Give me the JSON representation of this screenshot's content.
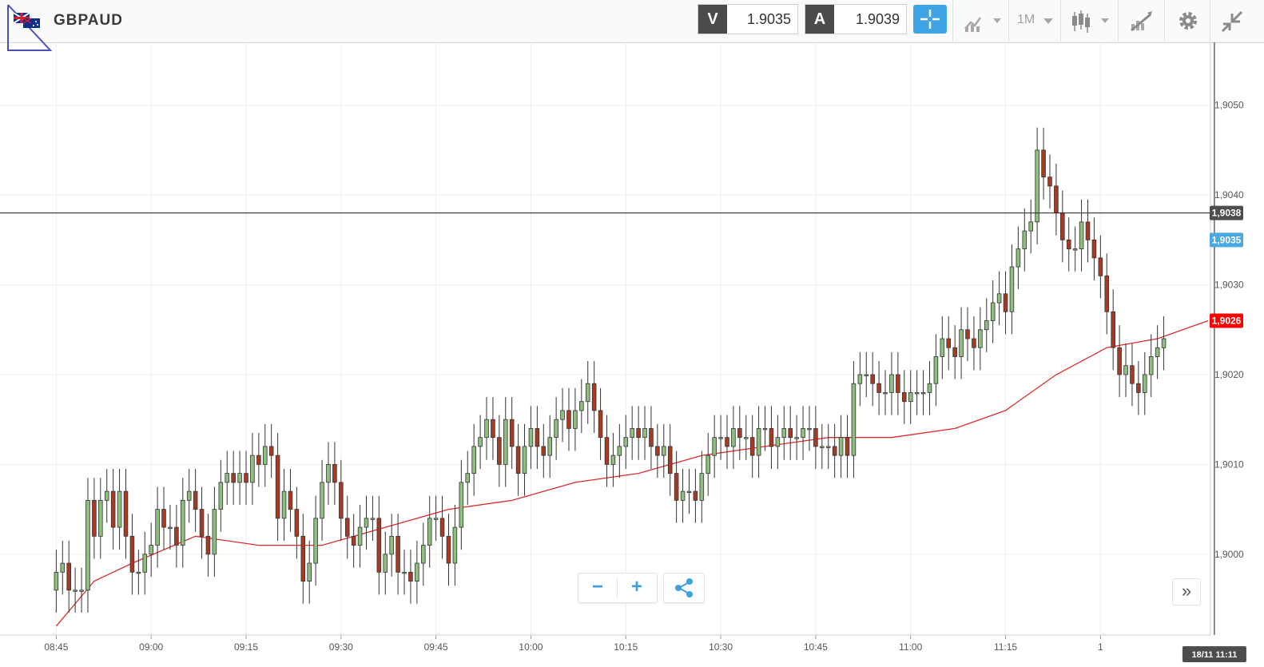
{
  "header": {
    "symbol": "GBPAUD",
    "sell": {
      "label": "V",
      "price": "1.9035"
    },
    "buy": {
      "label": "A",
      "price": "1.9039"
    },
    "timeframe": "1M",
    "icons": [
      "crosshair-icon",
      "chart-type-icon",
      "candles-icon",
      "drawing-icon",
      "gear-icon",
      "collapse-icon"
    ]
  },
  "controls": {
    "zoom_out": "−",
    "zoom_in": "+",
    "share": "share-icon",
    "scroll_forward": "»"
  },
  "colors": {
    "up": "#8fbf7e",
    "down": "#a83a24",
    "ma": "#e02b2b",
    "bid_tag": "#4aa9e0",
    "ma_tag": "#ff0000",
    "cursor_tag": "#4d4d4d",
    "accent": "#3fa4e6"
  },
  "chart_data": {
    "type": "candlestick",
    "instrument": "GBPAUD",
    "interval": "1M",
    "x_ticks": [
      "08:45",
      "09:00",
      "09:15",
      "09:30",
      "09:45",
      "10:00",
      "10:15",
      "10:30",
      "10:45",
      "11:00",
      "11:15",
      "1"
    ],
    "y_ticks": [
      "1,9000",
      "1,9010",
      "1,9020",
      "1,9030",
      "1,9040",
      "1,9050"
    ],
    "ylim": [
      1.8991,
      1.9057
    ],
    "grid": true,
    "price_tags": {
      "cursor": "1,9038",
      "bid": "1,9035",
      "moving_average": "1,9026"
    },
    "cursor_time": "18/11 11:11",
    "cursor_price": 1.9038,
    "candle_start": 8,
    "closes": [
      1.8998,
      1.8999,
      1.8996,
      1.8996,
      1.8996,
      1.9006,
      1.9002,
      1.9006,
      1.9007,
      1.9003,
      1.9007,
      1.9002,
      1.8998,
      1.8998,
      1.9,
      1.9001,
      1.9005,
      1.9003,
      1.9003,
      1.9001,
      1.9006,
      1.9007,
      1.9005,
      1.9002,
      1.9,
      1.9005,
      1.9008,
      1.9009,
      1.9008,
      1.9009,
      1.9008,
      1.9011,
      1.901,
      1.9012,
      1.9011,
      1.9004,
      1.9007,
      1.9005,
      1.9002,
      1.8997,
      1.8999,
      1.9004,
      1.9008,
      1.901,
      1.9008,
      1.9004,
      1.9002,
      1.9001,
      1.9003,
      1.9004,
      1.9004,
      1.8998,
      1.9,
      1.9002,
      1.8998,
      1.8998,
      1.8997,
      1.8999,
      1.9001,
      1.9004,
      1.9004,
      1.9002,
      1.8999,
      1.9003,
      1.9008,
      1.9009,
      1.9012,
      1.9013,
      1.9015,
      1.9013,
      1.901,
      1.9015,
      1.9012,
      1.9009,
      1.9012,
      1.9014,
      1.9012,
      1.9011,
      1.9013,
      1.9015,
      1.9016,
      1.9014,
      1.9016,
      1.9017,
      1.9019,
      1.9016,
      1.9013,
      1.901,
      1.9011,
      1.9012,
      1.9013,
      1.9014,
      1.9013,
      1.9014,
      1.9012,
      1.9011,
      1.9012,
      1.9009,
      1.9006,
      1.9007,
      1.9007,
      1.9006,
      1.9009,
      1.9011,
      1.9013,
      1.9013,
      1.9012,
      1.9014,
      1.9013,
      1.9013,
      1.9011,
      1.9014,
      1.9014,
      1.9012,
      1.9013,
      1.9014,
      1.9013,
      1.9013,
      1.9014,
      1.9014,
      1.9012,
      1.9012,
      1.9012,
      1.9011,
      1.9013,
      1.9011,
      1.9019,
      1.902,
      1.902,
      1.9019,
      1.9018,
      1.9018,
      1.902,
      1.9018,
      1.9017,
      1.9018,
      1.9018,
      1.9018,
      1.9019,
      1.9022,
      1.9024,
      1.9023,
      1.9022,
      1.9025,
      1.9024,
      1.9023,
      1.9025,
      1.9026,
      1.9028,
      1.9029,
      1.9027,
      1.9032,
      1.9034,
      1.9036,
      1.9037,
      1.9045,
      1.9042,
      1.9041,
      1.9038,
      1.9035,
      1.9034,
      1.9034,
      1.9037,
      1.9035,
      1.9033,
      1.9031,
      1.9027,
      1.9023,
      1.902,
      1.9021,
      1.9019,
      1.9018,
      1.902,
      1.9022,
      1.9023,
      1.9024
    ],
    "moving_average": {
      "period": null,
      "points": [
        [
          8,
          1.8992
        ],
        [
          14,
          1.8997
        ],
        [
          20,
          1.8999
        ],
        [
          30,
          1.9002
        ],
        [
          40,
          1.9001
        ],
        [
          50,
          1.9001
        ],
        [
          60,
          1.9003
        ],
        [
          70,
          1.9005
        ],
        [
          80,
          1.9006
        ],
        [
          90,
          1.9008
        ],
        [
          100,
          1.9009
        ],
        [
          110,
          1.9011
        ],
        [
          120,
          1.9012
        ],
        [
          130,
          1.9013
        ],
        [
          140,
          1.9013
        ],
        [
          150,
          1.9014
        ],
        [
          158,
          1.9016
        ],
        [
          166,
          1.902
        ],
        [
          174,
          1.9023
        ],
        [
          182,
          1.9024
        ],
        [
          190,
          1.9026
        ]
      ]
    }
  }
}
